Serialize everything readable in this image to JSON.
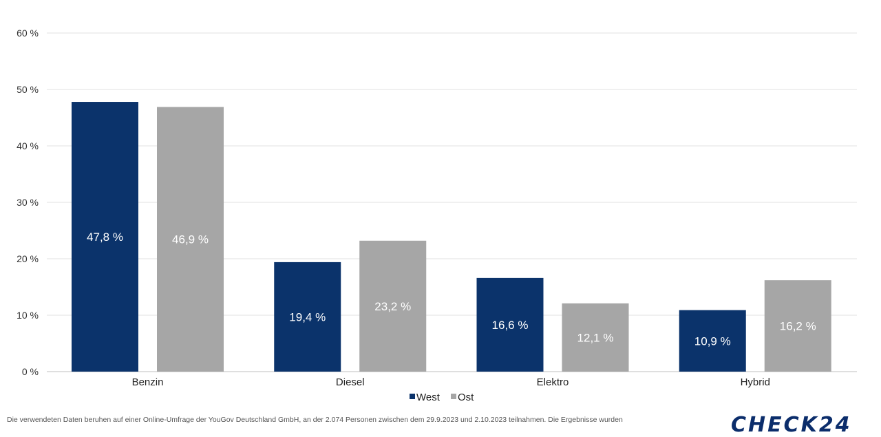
{
  "chart_data": {
    "type": "bar",
    "categories": [
      "Benzin",
      "Diesel",
      "Elektro",
      "Hybrid"
    ],
    "series": [
      {
        "name": "West",
        "values": [
          47.8,
          19.4,
          16.6,
          10.9
        ],
        "labels": [
          "47,8 %",
          "19,4 %",
          "16,6 %",
          "10,9 %"
        ],
        "color": "#0b336b"
      },
      {
        "name": "Ost",
        "values": [
          46.9,
          23.2,
          12.1,
          16.2
        ],
        "labels": [
          "46,9 %",
          "23,2 %",
          "12,1 %",
          "16,2 %"
        ],
        "color": "#a6a6a6"
      }
    ],
    "ylim": [
      0,
      60
    ],
    "yticks": [
      0,
      10,
      20,
      30,
      40,
      50,
      60
    ],
    "ytick_labels": [
      "0 %",
      "10 %",
      "20 %",
      "30 %",
      "40 %",
      "50 %",
      "60 %"
    ],
    "grid": true,
    "legend_position": "bottom-center"
  },
  "footnote": "Die verwendeten Daten beruhen auf einer Online-Umfrage der YouGov Deutschland GmbH, an der 2.074 Personen zwischen dem 29.9.2023 und 2.10.2023 teilnahmen. Die Ergebnisse wurden",
  "logo_text": "CHECK24"
}
